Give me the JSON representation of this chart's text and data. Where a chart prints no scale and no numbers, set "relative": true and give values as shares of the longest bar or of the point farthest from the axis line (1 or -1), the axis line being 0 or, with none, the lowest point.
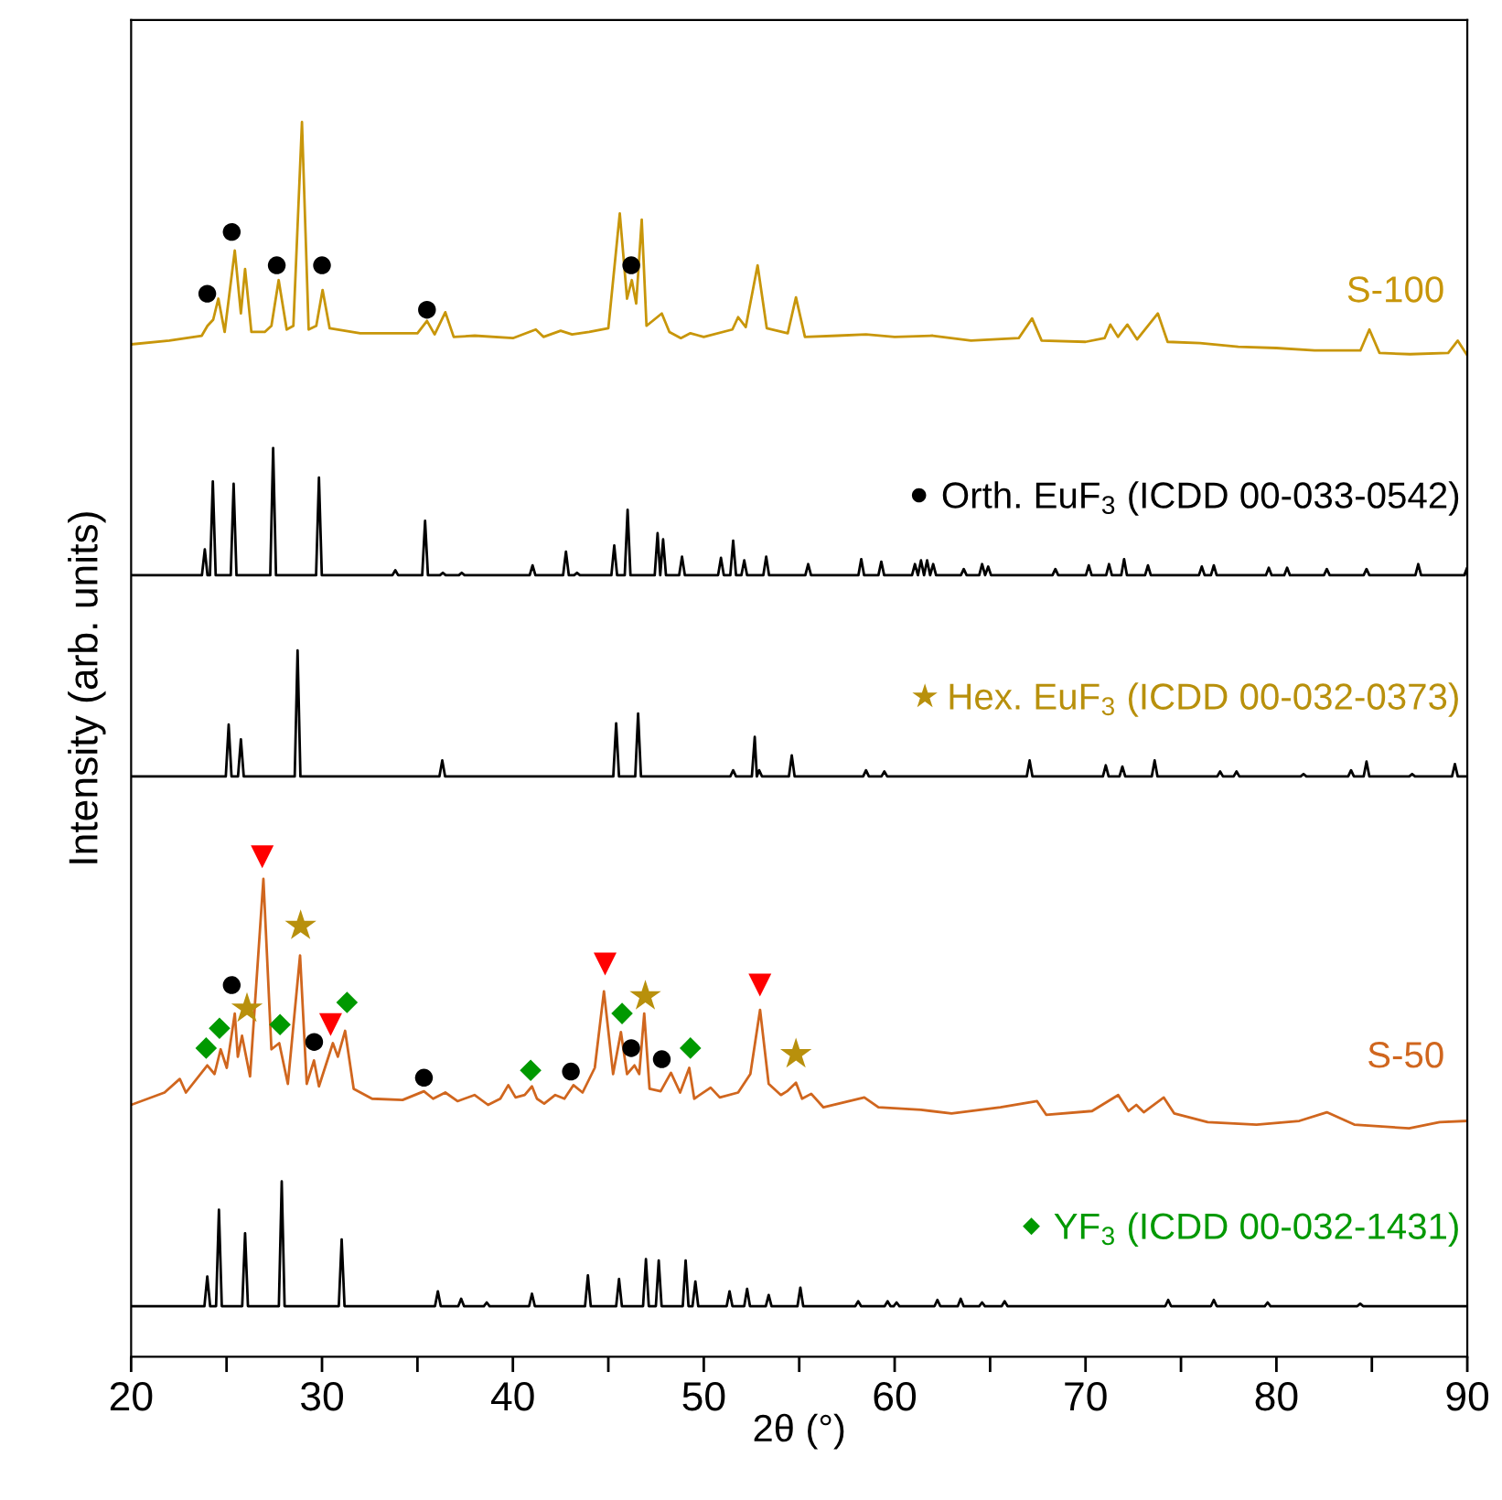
{
  "chart_data": {
    "type": "line",
    "relative": true,
    "xlabel": "2θ (°)",
    "ylabel": "Intensity (arb. units)",
    "xlim": [
      20,
      90
    ],
    "xticks": [
      20,
      {
        "value": 25,
        "label": null
      },
      30,
      {
        "value": 35,
        "label": null
      },
      40,
      {
        "value": 45,
        "label": null
      },
      50,
      {
        "value": 55,
        "label": null
      },
      60,
      {
        "value": 65,
        "label": null
      },
      70,
      {
        "value": 75,
        "label": null
      },
      80,
      {
        "value": 85,
        "label": null
      },
      90
    ],
    "grid": false,
    "legend": "right",
    "tick_labels": "x",
    "series": [
      {
        "name": "S-100",
        "color": "#c8960a",
        "x": [
          20,
          22,
          23.7,
          24.0,
          24.3,
          24.57,
          24.9,
          25.43,
          25.75,
          25.97,
          26.3,
          27.0,
          27.35,
          27.73,
          28.15,
          28.5,
          28.95,
          29.3,
          29.7,
          30.03,
          30.4,
          32,
          35,
          35.5,
          35.9,
          36.46,
          36.9,
          38,
          40,
          41.2,
          41.6,
          42.5,
          43.1,
          44,
          45.0,
          45.6,
          45.98,
          46.23,
          46.46,
          46.75,
          47.0,
          47.8,
          48.2,
          48.8,
          49.3,
          50,
          51.5,
          51.8,
          52.2,
          52.82,
          53.3,
          54.4,
          54.83,
          55.3,
          57,
          58.5,
          60,
          62,
          64,
          66.5,
          67.2,
          67.7,
          70,
          71.0,
          71.3,
          71.7,
          72.19,
          72.7,
          73.79,
          74.3,
          76,
          78,
          80,
          82,
          84.4,
          84.87,
          85.4,
          87,
          89.0,
          89.5,
          90
        ],
        "values": [
          0.82,
          0.823,
          0.827,
          0.835,
          0.84,
          0.857,
          0.83,
          0.896,
          0.845,
          0.881,
          0.83,
          0.83,
          0.835,
          0.872,
          0.832,
          0.835,
          1.0,
          0.832,
          0.835,
          0.864,
          0.833,
          0.829,
          0.829,
          0.839,
          0.828,
          0.846,
          0.826,
          0.827,
          0.825,
          0.832,
          0.826,
          0.831,
          0.828,
          0.83,
          0.833,
          0.926,
          0.857,
          0.872,
          0.853,
          0.921,
          0.835,
          0.845,
          0.83,
          0.825,
          0.829,
          0.826,
          0.832,
          0.842,
          0.834,
          0.884,
          0.833,
          0.829,
          0.858,
          0.826,
          0.827,
          0.828,
          0.826,
          0.827,
          0.823,
          0.825,
          0.841,
          0.823,
          0.822,
          0.825,
          0.836,
          0.826,
          0.836,
          0.824,
          0.845,
          0.822,
          0.821,
          0.818,
          0.817,
          0.815,
          0.815,
          0.832,
          0.813,
          0.812,
          0.813,
          0.823,
          0.811
        ]
      },
      {
        "color": "#000000",
        "x": [
          20,
          23.71,
          23.86,
          24.0,
          24.13,
          24.28,
          24.43,
          25.22,
          25.37,
          25.52,
          27.29,
          27.44,
          27.59,
          29.69,
          29.84,
          29.99,
          33.69,
          33.84,
          33.99,
          35.25,
          35.4,
          35.55,
          36.18,
          36.33,
          36.48,
          37.17,
          37.32,
          37.47,
          40.88,
          41.03,
          41.18,
          42.63,
          42.78,
          42.93,
          43.21,
          43.36,
          43.51,
          45.16,
          45.31,
          45.46,
          45.86,
          46.01,
          46.16,
          47.43,
          47.58,
          47.72,
          47.87,
          48.02,
          48.71,
          48.86,
          49.01,
          50.75,
          50.9,
          51.05,
          51.39,
          51.54,
          51.69,
          51.97,
          52.12,
          52.27,
          53.12,
          53.27,
          53.42,
          55.32,
          55.47,
          55.62,
          58.1,
          58.25,
          58.4,
          59.15,
          59.3,
          59.45,
          60.91,
          61.06,
          61.22,
          61.38,
          61.54,
          61.7,
          61.86,
          62.02,
          62.17,
          63.47,
          63.62,
          63.77,
          64.43,
          64.58,
          64.74,
          64.9,
          65.05,
          68.27,
          68.42,
          68.57,
          70.02,
          70.17,
          70.32,
          71.08,
          71.23,
          71.38,
          71.87,
          72.02,
          72.17,
          73.12,
          73.27,
          73.42,
          75.94,
          76.09,
          76.24,
          76.57,
          76.72,
          76.87,
          79.45,
          79.6,
          79.75,
          80.41,
          80.56,
          80.71,
          82.49,
          82.64,
          82.79,
          84.57,
          84.72,
          84.87,
          87.28,
          87.43,
          87.58,
          89.84,
          89.99,
          90
        ],
        "values": [
          0.633,
          0.633,
          0.654,
          0.633,
          0.633,
          0.709,
          0.633,
          0.633,
          0.707,
          0.633,
          0.633,
          0.736,
          0.633,
          0.633,
          0.712,
          0.633,
          0.633,
          0.637,
          0.633,
          0.633,
          0.677,
          0.633,
          0.633,
          0.635,
          0.633,
          0.633,
          0.635,
          0.633,
          0.633,
          0.641,
          0.633,
          0.633,
          0.652,
          0.633,
          0.633,
          0.635,
          0.633,
          0.633,
          0.657,
          0.633,
          0.633,
          0.686,
          0.633,
          0.633,
          0.667,
          0.633,
          0.662,
          0.633,
          0.633,
          0.648,
          0.633,
          0.633,
          0.647,
          0.633,
          0.633,
          0.661,
          0.633,
          0.633,
          0.645,
          0.633,
          0.633,
          0.648,
          0.633,
          0.633,
          0.642,
          0.633,
          0.633,
          0.646,
          0.633,
          0.633,
          0.644,
          0.633,
          0.633,
          0.642,
          0.633,
          0.645,
          0.633,
          0.645,
          0.633,
          0.642,
          0.633,
          0.633,
          0.638,
          0.633,
          0.633,
          0.642,
          0.633,
          0.64,
          0.633,
          0.633,
          0.638,
          0.633,
          0.633,
          0.641,
          0.633,
          0.633,
          0.642,
          0.633,
          0.633,
          0.646,
          0.633,
          0.633,
          0.641,
          0.633,
          0.633,
          0.64,
          0.633,
          0.633,
          0.641,
          0.633,
          0.633,
          0.639,
          0.633,
          0.633,
          0.639,
          0.633,
          0.633,
          0.638,
          0.633,
          0.633,
          0.638,
          0.633,
          0.633,
          0.642,
          0.633,
          0.633,
          0.639,
          0.633
        ]
      },
      {
        "name": "Orth. EuF$_{3}$ (ICDD 00-033-0542)",
        "type": "scatter",
        "marker": "circle",
        "color": "#000000",
        "x": [
          23.99,
          25.27,
          27.63,
          30.0,
          35.5,
          46.2,
          25.27,
          29.59,
          35.34,
          43.04,
          46.2,
          47.8
        ],
        "values": [
          0.861,
          0.911,
          0.884,
          0.884,
          0.848,
          0.884,
          0.301,
          0.255,
          0.226,
          0.231,
          0.25,
          0.241
        ]
      },
      {
        "color": "#000000",
        "x": [
          20,
          24.96,
          25.11,
          25.26,
          25.6,
          25.75,
          25.9,
          28.57,
          28.72,
          28.87,
          36.15,
          36.3,
          36.45,
          45.26,
          45.41,
          45.56,
          46.41,
          46.56,
          46.71,
          51.39,
          51.54,
          51.69,
          52.52,
          52.67,
          52.78,
          52.9,
          53.05,
          54.46,
          54.61,
          54.76,
          58.35,
          58.5,
          58.65,
          59.31,
          59.46,
          59.61,
          66.92,
          67.07,
          67.22,
          70.91,
          71.06,
          71.21,
          71.78,
          71.93,
          72.08,
          73.47,
          73.62,
          73.77,
          76.9,
          77.05,
          77.2,
          77.76,
          77.91,
          78.06,
          81.27,
          81.42,
          81.57,
          83.76,
          83.91,
          84.06,
          84.57,
          84.72,
          84.87,
          86.96,
          87.11,
          87.26,
          89.2,
          89.35,
          89.5,
          90
        ],
        "values": [
          0.47,
          0.47,
          0.512,
          0.47,
          0.47,
          0.5,
          0.47,
          0.47,
          0.572,
          0.47,
          0.47,
          0.483,
          0.47,
          0.47,
          0.513,
          0.47,
          0.47,
          0.521,
          0.47,
          0.47,
          0.475,
          0.47,
          0.47,
          0.502,
          0.47,
          0.475,
          0.47,
          0.47,
          0.487,
          0.47,
          0.47,
          0.475,
          0.47,
          0.47,
          0.474,
          0.47,
          0.47,
          0.483,
          0.47,
          0.47,
          0.479,
          0.47,
          0.47,
          0.478,
          0.47,
          0.47,
          0.483,
          0.47,
          0.47,
          0.474,
          0.47,
          0.47,
          0.474,
          0.47,
          0.47,
          0.472,
          0.47,
          0.47,
          0.475,
          0.47,
          0.47,
          0.482,
          0.47,
          0.47,
          0.472,
          0.47,
          0.47,
          0.48,
          0.47,
          0.47
        ]
      },
      {
        "name": "Hex. EuF$_{3}$ (ICDD 00-032-0373)",
        "type": "scatter",
        "marker": "star",
        "color": "#b8900c",
        "x": [
          26.07,
          28.88,
          46.94,
          54.83
        ],
        "values": [
          0.282,
          0.349,
          0.292,
          0.245
        ]
      },
      {
        "name": "S-50",
        "color": "#d0661e",
        "x": [
          20,
          21.75,
          22.55,
          22.87,
          23.99,
          24.37,
          24.69,
          25.01,
          25.43,
          25.59,
          25.81,
          26.23,
          26.93,
          27.35,
          27.76,
          28.21,
          28.85,
          29.2,
          29.58,
          29.84,
          30.57,
          30.83,
          31.21,
          31.66,
          32.62,
          34.22,
          35.34,
          35.82,
          36.46,
          37.1,
          37.99,
          38.7,
          39.34,
          39.76,
          40.14,
          40.62,
          41.0,
          41.26,
          41.64,
          42.22,
          42.7,
          43.17,
          43.65,
          44.29,
          44.77,
          45.25,
          45.66,
          45.98,
          46.37,
          46.62,
          46.88,
          47.16,
          47.74,
          48.28,
          48.76,
          49.24,
          49.5,
          50.36,
          50.84,
          51.8,
          52.44,
          52.95,
          53.4,
          54.04,
          54.36,
          54.83,
          55.15,
          55.63,
          56.27,
          58.41,
          59.15,
          61.38,
          62.98,
          65.54,
          67.46,
          67.94,
          70.34,
          71.71,
          72.25,
          72.66,
          73.05,
          74.1,
          74.65,
          76.4,
          78.96,
          81.2,
          82.64,
          84.08,
          86.95,
          88.55,
          90
        ],
        "values": [
          0.204,
          0.214,
          0.225,
          0.214,
          0.236,
          0.229,
          0.249,
          0.234,
          0.278,
          0.243,
          0.26,
          0.227,
          0.387,
          0.249,
          0.254,
          0.221,
          0.325,
          0.221,
          0.24,
          0.219,
          0.254,
          0.243,
          0.264,
          0.217,
          0.209,
          0.208,
          0.215,
          0.209,
          0.214,
          0.207,
          0.212,
          0.204,
          0.209,
          0.22,
          0.21,
          0.212,
          0.219,
          0.209,
          0.205,
          0.212,
          0.209,
          0.22,
          0.214,
          0.234,
          0.296,
          0.229,
          0.263,
          0.229,
          0.236,
          0.229,
          0.278,
          0.217,
          0.215,
          0.23,
          0.214,
          0.234,
          0.209,
          0.218,
          0.21,
          0.214,
          0.229,
          0.281,
          0.221,
          0.212,
          0.215,
          0.222,
          0.209,
          0.213,
          0.202,
          0.21,
          0.202,
          0.2,
          0.197,
          0.202,
          0.207,
          0.196,
          0.199,
          0.212,
          0.199,
          0.204,
          0.198,
          0.21,
          0.197,
          0.19,
          0.188,
          0.191,
          0.198,
          0.188,
          0.185,
          0.19,
          0.191
        ]
      },
      {
        "type": "scatter",
        "marker": "triangle",
        "color": "#ff0000",
        "x": [
          26.87,
          30.45,
          44.83,
          52.94
        ],
        "values": [
          0.405,
          0.269,
          0.318,
          0.301
        ]
      },
      {
        "color": "#000000",
        "x": [
          20,
          23.84,
          23.99,
          24.14,
          24.45,
          24.6,
          24.75,
          25.82,
          25.97,
          26.12,
          27.74,
          27.89,
          28.04,
          30.88,
          31.03,
          31.18,
          35.92,
          36.07,
          36.22,
          37.14,
          37.29,
          37.44,
          38.48,
          38.63,
          38.78,
          40.85,
          41.0,
          41.15,
          43.78,
          43.93,
          44.08,
          45.41,
          45.56,
          45.71,
          46.82,
          46.97,
          47.12,
          47.49,
          47.64,
          47.79,
          48.9,
          49.05,
          49.2,
          49.41,
          49.56,
          49.71,
          51.2,
          51.35,
          51.5,
          52.12,
          52.27,
          52.42,
          53.25,
          53.4,
          53.55,
          54.91,
          55.06,
          55.21,
          57.94,
          58.09,
          58.24,
          59.48,
          59.63,
          59.78,
          59.95,
          60.1,
          60.25,
          62.09,
          62.24,
          62.39,
          63.31,
          63.46,
          63.61,
          64.43,
          64.58,
          64.73,
          65.61,
          65.76,
          65.91,
          74.18,
          74.33,
          74.48,
          76.57,
          76.72,
          76.87,
          79.39,
          79.54,
          79.69,
          84.24,
          84.39,
          84.54,
          90
        ],
        "values": [
          0.041,
          0.041,
          0.065,
          0.041,
          0.041,
          0.119,
          0.041,
          0.041,
          0.1,
          0.041,
          0.041,
          0.142,
          0.041,
          0.041,
          0.095,
          0.041,
          0.041,
          0.053,
          0.041,
          0.041,
          0.047,
          0.041,
          0.041,
          0.044,
          0.041,
          0.041,
          0.051,
          0.041,
          0.041,
          0.066,
          0.041,
          0.041,
          0.063,
          0.041,
          0.041,
          0.079,
          0.041,
          0.041,
          0.078,
          0.041,
          0.041,
          0.078,
          0.041,
          0.041,
          0.061,
          0.041,
          0.041,
          0.053,
          0.041,
          0.041,
          0.055,
          0.041,
          0.041,
          0.05,
          0.041,
          0.041,
          0.056,
          0.041,
          0.041,
          0.045,
          0.041,
          0.041,
          0.045,
          0.041,
          0.041,
          0.044,
          0.041,
          0.041,
          0.046,
          0.041,
          0.041,
          0.047,
          0.041,
          0.041,
          0.044,
          0.041,
          0.041,
          0.045,
          0.041,
          0.041,
          0.046,
          0.041,
          0.041,
          0.046,
          0.041,
          0.041,
          0.044,
          0.041,
          0.041,
          0.043,
          0.041,
          0.041
        ]
      },
      {
        "name": "YF$_{3}$ (ICDD 00-032-1431)",
        "type": "scatter",
        "marker": "diamond",
        "color": "#009900",
        "x": [
          23.93,
          24.63,
          27.8,
          31.31,
          40.93,
          45.72,
          49.3
        ],
        "values": [
          0.25,
          0.266,
          0.269,
          0.287,
          0.232,
          0.278,
          0.25
        ]
      }
    ]
  }
}
